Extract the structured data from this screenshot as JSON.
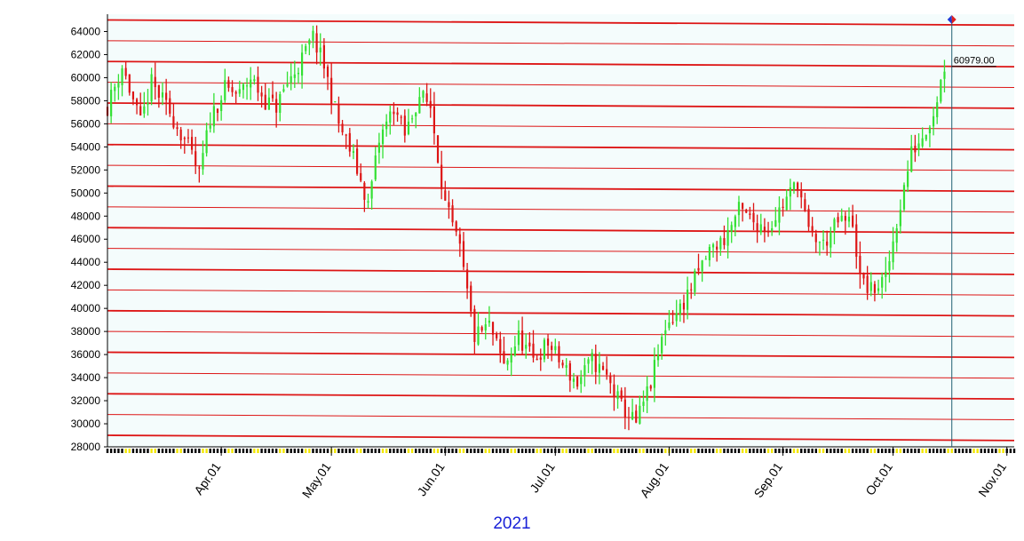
{
  "chart_data": {
    "type": "candlestick",
    "year_label": "2021",
    "ylim": [
      28000,
      65500
    ],
    "y_ticks": [
      28000,
      30000,
      32000,
      34000,
      36000,
      38000,
      40000,
      42000,
      44000,
      46000,
      48000,
      50000,
      52000,
      54000,
      56000,
      58000,
      60000,
      62000,
      64000
    ],
    "x_range": [
      "2021-03-01",
      "2021-11-03"
    ],
    "x_ticks": [
      {
        "label": "Apr.01",
        "date": "2021-04-01"
      },
      {
        "label": "May.01",
        "date": "2021-05-01"
      },
      {
        "label": "Jun.01",
        "date": "2021-06-01"
      },
      {
        "label": "Jul.01",
        "date": "2021-07-01"
      },
      {
        "label": "Aug.01",
        "date": "2021-08-01"
      },
      {
        "label": "Sep.01",
        "date": "2021-09-01"
      },
      {
        "label": "Oct.01",
        "date": "2021-10-01"
      },
      {
        "label": "Nov.01",
        "date": "2021-11-01"
      }
    ],
    "cursor": {
      "date": "2021-10-17",
      "value": 60979,
      "label": "60979.00"
    },
    "price_series": [
      {
        "date": "2021-03-01",
        "value": 57500
      },
      {
        "date": "2021-03-05",
        "value": 61000
      },
      {
        "date": "2021-03-10",
        "value": 56000
      },
      {
        "date": "2021-03-13",
        "value": 59500
      },
      {
        "date": "2021-03-18",
        "value": 57000
      },
      {
        "date": "2021-03-23",
        "value": 54000
      },
      {
        "date": "2021-03-26",
        "value": 51500
      },
      {
        "date": "2021-03-29",
        "value": 56500
      },
      {
        "date": "2021-04-02",
        "value": 59000
      },
      {
        "date": "2021-04-06",
        "value": 58500
      },
      {
        "date": "2021-04-09",
        "value": 60000
      },
      {
        "date": "2021-04-13",
        "value": 58000
      },
      {
        "date": "2021-04-16",
        "value": 57500
      },
      {
        "date": "2021-04-19",
        "value": 59500
      },
      {
        "date": "2021-04-22",
        "value": 61000
      },
      {
        "date": "2021-04-26",
        "value": 63500
      },
      {
        "date": "2021-04-29",
        "value": 61000
      },
      {
        "date": "2021-05-03",
        "value": 56000
      },
      {
        "date": "2021-05-07",
        "value": 53000
      },
      {
        "date": "2021-05-11",
        "value": 49000
      },
      {
        "date": "2021-05-14",
        "value": 54500
      },
      {
        "date": "2021-05-18",
        "value": 57500
      },
      {
        "date": "2021-05-21",
        "value": 55000
      },
      {
        "date": "2021-05-25",
        "value": 58500
      },
      {
        "date": "2021-05-28",
        "value": 57500
      },
      {
        "date": "2021-06-01",
        "value": 49000
      },
      {
        "date": "2021-06-05",
        "value": 45000
      },
      {
        "date": "2021-06-09",
        "value": 37500
      },
      {
        "date": "2021-06-13",
        "value": 38500
      },
      {
        "date": "2021-06-17",
        "value": 35000
      },
      {
        "date": "2021-06-21",
        "value": 37500
      },
      {
        "date": "2021-06-25",
        "value": 35500
      },
      {
        "date": "2021-06-29",
        "value": 37000
      },
      {
        "date": "2021-07-03",
        "value": 35000
      },
      {
        "date": "2021-07-07",
        "value": 33500
      },
      {
        "date": "2021-07-11",
        "value": 35500
      },
      {
        "date": "2021-07-15",
        "value": 34000
      },
      {
        "date": "2021-07-19",
        "value": 31500
      },
      {
        "date": "2021-07-23",
        "value": 30000
      },
      {
        "date": "2021-07-27",
        "value": 33500
      },
      {
        "date": "2021-07-31",
        "value": 38500
      },
      {
        "date": "2021-08-04",
        "value": 40000
      },
      {
        "date": "2021-08-08",
        "value": 42500
      },
      {
        "date": "2021-08-12",
        "value": 45000
      },
      {
        "date": "2021-08-16",
        "value": 46000
      },
      {
        "date": "2021-08-20",
        "value": 48500
      },
      {
        "date": "2021-08-24",
        "value": 47500
      },
      {
        "date": "2021-08-28",
        "value": 47000
      },
      {
        "date": "2021-09-01",
        "value": 49000
      },
      {
        "date": "2021-09-05",
        "value": 51000
      },
      {
        "date": "2021-09-08",
        "value": 46500
      },
      {
        "date": "2021-09-12",
        "value": 45500
      },
      {
        "date": "2021-09-16",
        "value": 47500
      },
      {
        "date": "2021-09-20",
        "value": 47500
      },
      {
        "date": "2021-09-22",
        "value": 42500
      },
      {
        "date": "2021-09-25",
        "value": 41500
      },
      {
        "date": "2021-09-29",
        "value": 42500
      },
      {
        "date": "2021-10-02",
        "value": 47500
      },
      {
        "date": "2021-10-06",
        "value": 53500
      },
      {
        "date": "2021-10-09",
        "value": 55000
      },
      {
        "date": "2021-10-12",
        "value": 57000
      },
      {
        "date": "2021-10-15",
        "value": 61000
      }
    ],
    "colors": {
      "up": "#33e033",
      "down": "#dd1515",
      "gridline": "#dd1515",
      "background": "#f4fcfc",
      "cursor": "#1f5f73",
      "year_label": "#1a22d8"
    }
  }
}
